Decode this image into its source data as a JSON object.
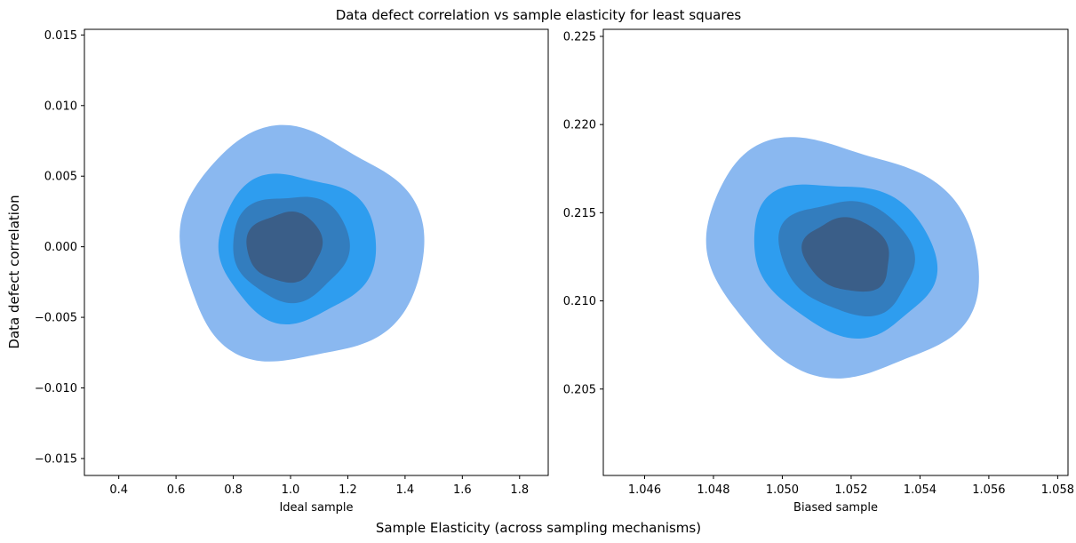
{
  "figure": {
    "title": "Data defect correlation vs sample elasticity for least squares",
    "xlabel": "Sample Elasticity (across sampling mechanisms)",
    "ylabel": "Data defect correlation"
  },
  "palette": {
    "level1": "#8ab8f0",
    "level2": "#2e9def",
    "level3": "#337dbe",
    "level4": "#3a5e88"
  },
  "chart_data": [
    {
      "type": "kde-contour",
      "title": "",
      "xlabel": "Ideal sample",
      "ylabel": "Data defect correlation",
      "xlim": [
        0.28,
        1.9
      ],
      "ylim": [
        -0.0162,
        0.0154
      ],
      "xticks": [
        0.4,
        0.6,
        0.8,
        1.0,
        1.2,
        1.4,
        1.6,
        1.8
      ],
      "xtick_labels": [
        "0.4",
        "0.6",
        "0.8",
        "1.0",
        "1.2",
        "1.4",
        "1.6",
        "1.8"
      ],
      "yticks": [
        -0.015,
        -0.01,
        -0.005,
        0.0,
        0.005,
        0.01,
        0.015
      ],
      "ytick_labels": [
        "−0.015",
        "−0.010",
        "−0.005",
        "0.000",
        "0.005",
        "0.010",
        "0.015"
      ],
      "levels": [
        {
          "level": 1,
          "center": [
            1.03,
            0.0
          ],
          "rx": 0.42,
          "ry": 0.0083,
          "angle": 0
        },
        {
          "level": 2,
          "center": [
            1.02,
            0.0
          ],
          "rx": 0.27,
          "ry": 0.0053,
          "angle": 0
        },
        {
          "level": 3,
          "center": [
            1.0,
            0.0
          ],
          "rx": 0.2,
          "ry": 0.0038,
          "angle": 0
        },
        {
          "level": 4,
          "center": [
            0.98,
            0.0
          ],
          "rx": 0.13,
          "ry": 0.0025,
          "angle": 0
        }
      ]
    },
    {
      "type": "kde-contour",
      "title": "",
      "xlabel": "Biased sample",
      "ylabel": "",
      "xlim": [
        1.0448,
        1.0583
      ],
      "ylim": [
        0.2001,
        0.2254
      ],
      "xticks": [
        1.046,
        1.048,
        1.05,
        1.052,
        1.054,
        1.056,
        1.058
      ],
      "xtick_labels": [
        "1.046",
        "1.048",
        "1.050",
        "1.052",
        "1.054",
        "1.056",
        "1.058"
      ],
      "yticks": [
        0.205,
        0.21,
        0.215,
        0.22,
        0.225
      ],
      "ytick_labels": [
        "0.205",
        "0.210",
        "0.215",
        "0.220",
        "0.225"
      ],
      "levels": [
        {
          "level": 1,
          "center": [
            1.0517,
            0.2125
          ],
          "rx": 0.004,
          "ry": 0.0065,
          "angle": 25
        },
        {
          "level": 2,
          "center": [
            1.0518,
            0.2125
          ],
          "rx": 0.0027,
          "ry": 0.0042,
          "angle": 25
        },
        {
          "level": 3,
          "center": [
            1.0519,
            0.2125
          ],
          "rx": 0.002,
          "ry": 0.0031,
          "angle": 25
        },
        {
          "level": 4,
          "center": [
            1.0519,
            0.2126
          ],
          "rx": 0.0013,
          "ry": 0.002,
          "angle": 25
        }
      ]
    }
  ]
}
